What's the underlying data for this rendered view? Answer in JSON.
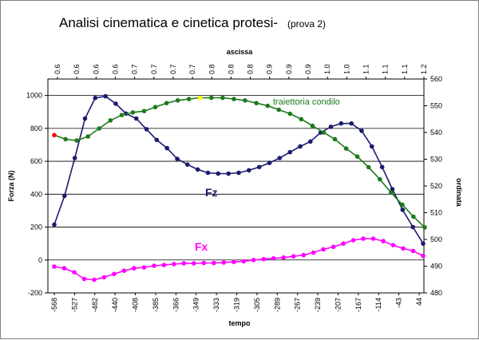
{
  "chart_data": {
    "type": "line",
    "title": "Analisi cinematica e cinetica protesi-",
    "subtitle": "(prova 2)",
    "xlabel": "tempo",
    "x2label": "ascissa",
    "ylabel": "Forza (N)",
    "y2label": "ordinata",
    "ylim": [
      -200,
      1100
    ],
    "y2lim": [
      480,
      560
    ],
    "yticks": [
      -200,
      0,
      200,
      400,
      600,
      800,
      1000
    ],
    "y2ticks": [
      480,
      490,
      500,
      510,
      520,
      530,
      540,
      550,
      560
    ],
    "grid": true,
    "x_tick_labels": [
      "-568",
      "-527",
      "-482",
      "-440",
      "-408",
      "-385",
      "-366",
      "-349",
      "-333",
      "-319",
      "-305",
      "-289",
      "-267",
      "-239",
      "-207",
      "-167",
      "-114",
      "-43",
      "44"
    ],
    "x2_tick_labels": [
      "0.6",
      "0.6",
      "0.6",
      "0.6",
      "0.7",
      "0.7",
      "0.7",
      "0.7",
      "0.8",
      "0.8",
      "0.8",
      "0.9",
      "0.9",
      "0.9",
      "1.0",
      "1.0",
      "1.1",
      "1.1",
      "1.1",
      "1.2"
    ],
    "series": [
      {
        "name": "Fz",
        "axis": "left",
        "color": "#1a1a6e",
        "values": [
          215,
          390,
          620,
          860,
          985,
          995,
          950,
          890,
          860,
          795,
          730,
          680,
          615,
          580,
          550,
          530,
          525,
          525,
          530,
          545,
          565,
          590,
          620,
          655,
          690,
          720,
          775,
          810,
          830,
          830,
          785,
          690,
          565,
          430,
          305,
          200,
          100
        ]
      },
      {
        "name": "Fx",
        "axis": "left",
        "color": "#ff00ff",
        "values": [
          -40,
          -50,
          -75,
          -115,
          -120,
          -105,
          -85,
          -65,
          -50,
          -45,
          -35,
          -30,
          -25,
          -20,
          -20,
          -18,
          -18,
          -15,
          -12,
          -8,
          0,
          5,
          10,
          15,
          22,
          30,
          45,
          65,
          80,
          100,
          120,
          130,
          130,
          115,
          90,
          70,
          55,
          25
        ]
      },
      {
        "name": "traiettoria condilo",
        "axis": "right",
        "color": "#1c7a1c",
        "values": [
          539,
          537.5,
          537,
          538.5,
          541.5,
          544.5,
          546.5,
          547.5,
          548,
          549.5,
          551,
          552,
          552.5,
          553,
          553,
          553,
          552.5,
          552,
          551,
          550,
          548.5,
          547,
          545,
          542.5,
          540,
          537.5,
          534,
          531,
          527,
          522.5,
          517.5,
          513,
          508.5,
          504.5
        ],
        "highlight_points": [
          {
            "index": 0,
            "color": "#ff0000"
          },
          {
            "index": 13,
            "color": "#ffff00"
          }
        ]
      }
    ]
  }
}
